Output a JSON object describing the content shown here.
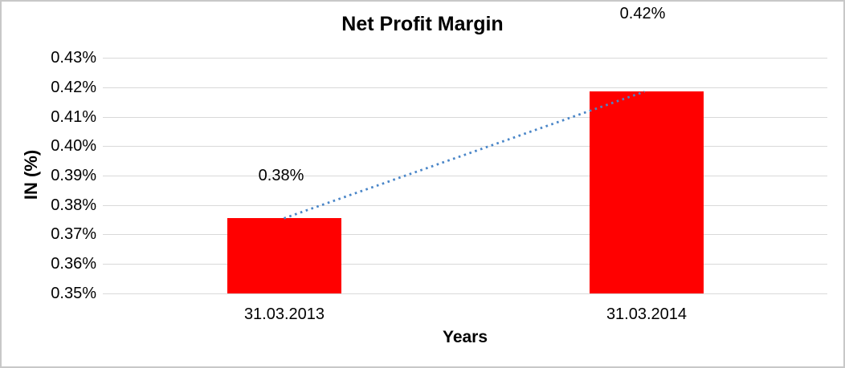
{
  "chart_data": {
    "type": "bar",
    "title": "Net Profit Margin",
    "xlabel": "Years",
    "ylabel": "IN (%)",
    "categories": [
      "31.03.2013",
      "31.03.2014"
    ],
    "values": [
      0.3755,
      0.4185
    ],
    "data_labels": [
      "0.38%",
      "0.42%"
    ],
    "ylim": [
      0.35,
      0.43
    ],
    "yticks": [
      {
        "value": 0.43,
        "label": "0.43%"
      },
      {
        "value": 0.42,
        "label": "0.42%"
      },
      {
        "value": 0.41,
        "label": "0.41%"
      },
      {
        "value": 0.4,
        "label": "0.40%"
      },
      {
        "value": 0.39,
        "label": "0.39%"
      },
      {
        "value": 0.38,
        "label": "0.38%"
      },
      {
        "value": 0.37,
        "label": "0.37%"
      },
      {
        "value": 0.36,
        "label": "0.36%"
      },
      {
        "value": 0.35,
        "label": "0.35%"
      }
    ],
    "grid": true,
    "legend": false,
    "bar_color": "#ff0000",
    "gridline_color": "#d9d9d9",
    "trendline": {
      "type": "linear",
      "style": "dotted",
      "color": "#4a86c8",
      "from_value": 0.3755,
      "to_value": 0.4185
    }
  }
}
